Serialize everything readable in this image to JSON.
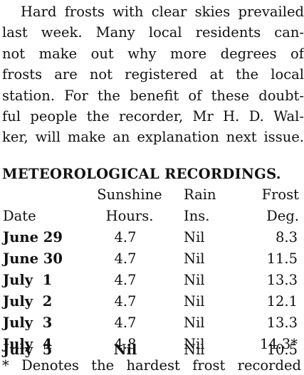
{
  "paragraph": {
    "lines": [
      "Hard frosts with clear skies prevailed",
      "last week.  Many local residents can-",
      "not make out why more degrees of",
      "frosts are not registered at the local",
      "station.  For the benefit of these doubt-",
      "ful people the recorder, Mr H. D. Wal-",
      "ker, will make an explanation next issue."
    ]
  },
  "heading": "METEOROLOGICAL RECORDINGS.",
  "table": {
    "header_top": {
      "sunshine": "Sunshine",
      "rain": "Rain",
      "frost": "Frost"
    },
    "header_bottom": {
      "date": "Date",
      "sunshine": "Hours.",
      "rain": "Ins.",
      "frost": "Deg."
    },
    "rows": [
      {
        "date": "June 29",
        "sunshine": "4.7",
        "rain": "Nil",
        "frost": "8.3"
      },
      {
        "date": "June 30",
        "sunshine": "4.7",
        "rain": "Nil",
        "frost": "11.5"
      },
      {
        "date": "July  1",
        "sunshine": "4.7",
        "rain": "Nil",
        "frost": "13.3"
      },
      {
        "date": "July  2",
        "sunshine": "4.7",
        "rain": "Nil",
        "frost": "12.1"
      },
      {
        "date": "July  3",
        "sunshine": "4.7",
        "rain": "Nil",
        "frost": "13.3"
      },
      {
        "date": "July  4",
        "sunshine": "4.8",
        "rain": "Nil",
        "frost": "14.3*"
      },
      {
        "date": "July  5",
        "sunshine": "Nil",
        "rain": "Nil",
        "frost": "10.5"
      }
    ]
  },
  "footnote": "* Denotes the hardest frost recorded"
}
